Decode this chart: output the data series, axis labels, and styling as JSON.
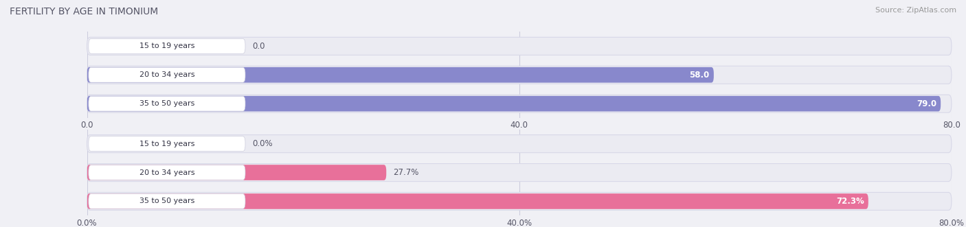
{
  "title": "Female Fertility by Age in Timonium",
  "title_display": "FERTILITY BY AGE IN TIMONIUM",
  "source": "Source: ZipAtlas.com",
  "top_chart": {
    "categories": [
      "15 to 19 years",
      "20 to 34 years",
      "35 to 50 years"
    ],
    "values": [
      0.0,
      58.0,
      79.0
    ],
    "xlim": [
      0,
      80
    ],
    "xticks": [
      0.0,
      40.0,
      80.0
    ],
    "xtick_labels": [
      "0.0",
      "40.0",
      "80.0"
    ],
    "bar_color": "#8888cc",
    "value_labels": [
      "0.0",
      "58.0",
      "79.0"
    ],
    "value_label_inside": [
      false,
      true,
      true
    ]
  },
  "bottom_chart": {
    "categories": [
      "15 to 19 years",
      "20 to 34 years",
      "35 to 50 years"
    ],
    "values": [
      0.0,
      27.7,
      72.3
    ],
    "xlim": [
      0,
      80
    ],
    "xticks": [
      0.0,
      40.0,
      80.0
    ],
    "xtick_labels": [
      "0.0%",
      "40.0%",
      "80.0%"
    ],
    "bar_color": "#e8709a",
    "value_labels": [
      "0.0%",
      "27.7%",
      "72.3%"
    ],
    "value_label_inside": [
      false,
      false,
      true
    ]
  },
  "bg_color": "#f0f0f5",
  "bar_bg_color": "#ebebf2",
  "bar_bg_edge_color": "#d8d8e8",
  "label_color": "#555566",
  "title_color": "#555566",
  "source_color": "#999999",
  "fig_width": 14.06,
  "fig_height": 3.31,
  "label_badge_color": "#ffffff",
  "label_badge_edge": "#ccccdd"
}
